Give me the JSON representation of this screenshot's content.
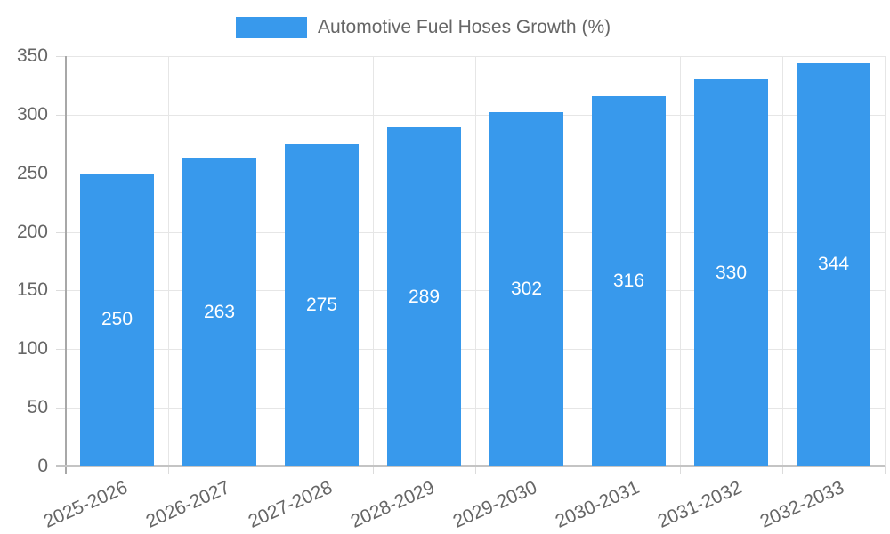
{
  "legend": {
    "label": "Automotive Fuel Hoses Growth (%)"
  },
  "colors": {
    "bar": "#3899ec",
    "bar_label": "#ffffff",
    "axis_text": "#666666",
    "grid": "#e6e6e6",
    "tick": "#dcdcdc",
    "y_axis_line": "#a8a8a8",
    "x_axis_line": "#c4c4c4",
    "background": "#ffffff"
  },
  "chart_data": {
    "type": "bar",
    "title": "Automotive Fuel Hoses Growth (%)",
    "categories": [
      "2025-2026",
      "2026-2027",
      "2027-2028",
      "2028-2029",
      "2029-2030",
      "2030-2031",
      "2031-2032",
      "2032-2033"
    ],
    "values": [
      250,
      263,
      275,
      289,
      302,
      316,
      330,
      344
    ],
    "xlabel": "",
    "ylabel": "",
    "ylim": [
      0,
      350
    ],
    "yticks": [
      0,
      50,
      100,
      150,
      200,
      250,
      300,
      350
    ],
    "grid": true,
    "legend_position": "top",
    "value_label_position": "inside-center"
  }
}
